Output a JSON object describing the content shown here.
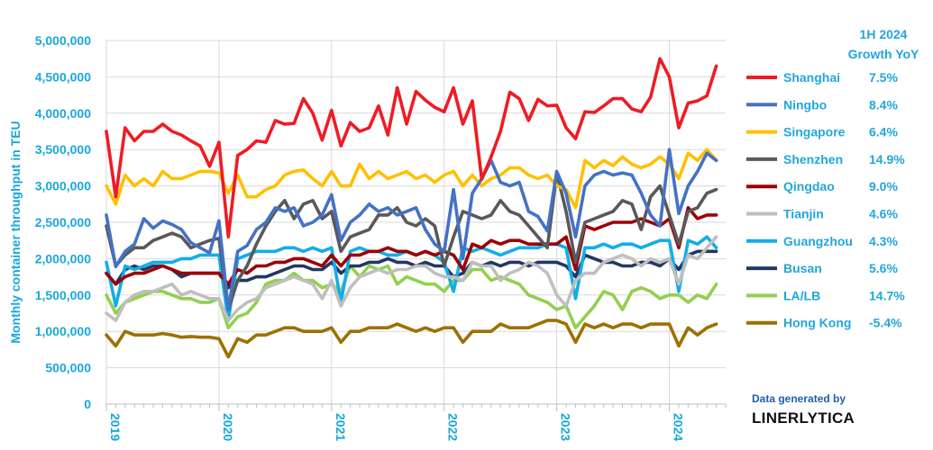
{
  "credit": {
    "line1": "Data generated by",
    "line2": "LINERLYTICA"
  },
  "chart_data": {
    "type": "line",
    "ylabel": "Monthly container throughput in TEU",
    "ylim": [
      0,
      5000000
    ],
    "yticks": [
      0,
      500000,
      1000000,
      1500000,
      2000000,
      2500000,
      3000000,
      3500000,
      4000000,
      4500000,
      5000000
    ],
    "ytick_labels": [
      "0",
      "500,000",
      "1,000,000",
      "1,500,000",
      "2,000,000",
      "2,500,000",
      "3,000,000",
      "3,500,000",
      "4,000,000",
      "4,500,000",
      "5,000,000"
    ],
    "x_tick_labels": [
      "2019",
      "2020",
      "2021",
      "2022",
      "2023",
      "2024"
    ],
    "x_start": "2019-01",
    "grid": true,
    "legend_title_line1": "1H 2024",
    "legend_title_line2": "Growth YoY",
    "legend_position": "right",
    "series": [
      {
        "name": "Shanghai",
        "growth": "7.5%",
        "color": "#ee1c24",
        "values": [
          3750000,
          2850000,
          3800000,
          3620000,
          3750000,
          3750000,
          3850000,
          3750000,
          3700000,
          3620000,
          3550000,
          3270000,
          3600000,
          2300000,
          3420000,
          3500000,
          3620000,
          3600000,
          3900000,
          3850000,
          3860000,
          4200000,
          4000000,
          3630000,
          4040000,
          3550000,
          3870000,
          3750000,
          3800000,
          4100000,
          3700000,
          4350000,
          3850000,
          4300000,
          4180000,
          4080000,
          4020000,
          4350000,
          3850000,
          4170000,
          3090000,
          3400000,
          3750000,
          4290000,
          4200000,
          3900000,
          4190000,
          4100000,
          4110000,
          3800000,
          3650000,
          4020000,
          4010000,
          4100000,
          4200000,
          4200000,
          4060000,
          4020000,
          4220000,
          4750000,
          4500000,
          3800000,
          4140000,
          4170000,
          4240000,
          4650000
        ]
      },
      {
        "name": "Ningbo",
        "growth": "8.4%",
        "color": "#4472c4",
        "values": [
          2600000,
          1890000,
          2100000,
          2200000,
          2550000,
          2420000,
          2520000,
          2470000,
          2400000,
          2220000,
          2150000,
          2080000,
          2520000,
          1300000,
          2100000,
          2180000,
          2400000,
          2500000,
          2700000,
          2650000,
          2700000,
          2450000,
          2500000,
          2600000,
          2880000,
          2250000,
          2500000,
          2600000,
          2750000,
          2650000,
          2700000,
          2600000,
          2650000,
          2700000,
          2400000,
          2200000,
          2100000,
          2950000,
          2000000,
          2900000,
          3100000,
          3350000,
          3050000,
          3000000,
          3050000,
          2650000,
          2580000,
          2380000,
          3200000,
          2900000,
          2300000,
          3000000,
          3150000,
          3200000,
          3150000,
          3180000,
          3150000,
          2900000,
          2600000,
          2450000,
          3500000,
          2620000,
          3000000,
          3200000,
          3450000,
          3350000
        ]
      },
      {
        "name": "Singapore",
        "growth": "6.4%",
        "color": "#ffc000",
        "values": [
          3000000,
          2750000,
          3150000,
          3000000,
          3100000,
          3000000,
          3200000,
          3100000,
          3100000,
          3150000,
          3200000,
          3200000,
          3180000,
          2900000,
          3150000,
          2850000,
          2850000,
          2950000,
          3000000,
          3150000,
          3200000,
          3220000,
          3100000,
          3000000,
          3200000,
          3000000,
          3000000,
          3300000,
          3100000,
          3200000,
          3100000,
          3150000,
          3200000,
          3100000,
          3150000,
          3050000,
          3150000,
          3200000,
          3000000,
          3150000,
          3000000,
          3100000,
          3150000,
          3250000,
          3250000,
          3150000,
          3100000,
          3150000,
          3000000,
          2950000,
          2700000,
          3350000,
          3250000,
          3350000,
          3280000,
          3400000,
          3300000,
          3250000,
          3300000,
          3400000,
          3300000,
          3100000,
          3450000,
          3350000,
          3500000,
          3350000
        ]
      },
      {
        "name": "Shenzhen",
        "growth": "14.9%",
        "color": "#595959",
        "values": [
          2450000,
          1900000,
          2050000,
          2150000,
          2150000,
          2250000,
          2300000,
          2350000,
          2300000,
          2150000,
          2200000,
          2250000,
          2280000,
          1300000,
          1700000,
          1900000,
          2200000,
          2450000,
          2650000,
          2800000,
          2550000,
          2750000,
          2800000,
          2550000,
          2650000,
          2100000,
          2300000,
          2350000,
          2400000,
          2600000,
          2600000,
          2700000,
          2500000,
          2450000,
          2550000,
          2450000,
          1900000,
          2300000,
          2650000,
          2600000,
          2550000,
          2600000,
          2800000,
          2650000,
          2600000,
          2450000,
          2300000,
          2150000,
          3180000,
          2650000,
          1950000,
          2500000,
          2550000,
          2600000,
          2650000,
          2800000,
          2750000,
          2400000,
          2850000,
          3000000,
          2600000,
          2200000,
          2650000,
          2700000,
          2900000,
          2950000
        ]
      },
      {
        "name": "Qingdao",
        "growth": "9.0%",
        "color": "#9c0006",
        "values": [
          1800000,
          1650000,
          1750000,
          1800000,
          1800000,
          1850000,
          1900000,
          1850000,
          1800000,
          1800000,
          1800000,
          1800000,
          1800000,
          1650000,
          1850000,
          1800000,
          1900000,
          1900000,
          1950000,
          1950000,
          2000000,
          2000000,
          1950000,
          1900000,
          2050000,
          1900000,
          2050000,
          2050000,
          2100000,
          2100000,
          2150000,
          2100000,
          2100000,
          2050000,
          2100000,
          2050000,
          2100000,
          2050000,
          1850000,
          2200000,
          2150000,
          2250000,
          2200000,
          2250000,
          2250000,
          2200000,
          2200000,
          2200000,
          2200000,
          2300000,
          1850000,
          2450000,
          2400000,
          2450000,
          2500000,
          2500000,
          2500000,
          2550000,
          2500000,
          2450000,
          2550000,
          2150000,
          2700000,
          2550000,
          2600000,
          2600000
        ]
      },
      {
        "name": "Tianjin",
        "growth": "4.6%",
        "color": "#bfbfbf",
        "values": [
          1250000,
          1150000,
          1400000,
          1500000,
          1550000,
          1550000,
          1600000,
          1650000,
          1500000,
          1550000,
          1500000,
          1450000,
          1450000,
          1150000,
          1300000,
          1400000,
          1450000,
          1600000,
          1650000,
          1700000,
          1750000,
          1700000,
          1650000,
          1450000,
          1700000,
          1350000,
          1600000,
          1750000,
          1800000,
          1850000,
          1800000,
          1850000,
          1850000,
          1900000,
          1900000,
          1800000,
          1750000,
          1750000,
          1700000,
          1950000,
          1900000,
          1900000,
          1700000,
          1800000,
          1850000,
          1950000,
          1900000,
          1800000,
          1500000,
          1350000,
          1700000,
          1800000,
          1800000,
          1950000,
          2000000,
          2050000,
          2000000,
          1900000,
          2000000,
          1950000,
          2000000,
          1650000,
          2050000,
          2000000,
          2150000,
          2300000
        ]
      },
      {
        "name": "Guangzhou",
        "growth": "4.3%",
        "color": "#12aee8",
        "values": [
          1950000,
          1350000,
          1900000,
          1850000,
          1900000,
          1950000,
          1950000,
          1950000,
          2000000,
          2000000,
          2050000,
          2050000,
          2050000,
          1150000,
          2000000,
          2050000,
          2100000,
          2100000,
          2100000,
          2150000,
          2150000,
          2100000,
          2150000,
          2100000,
          2150000,
          1400000,
          2100000,
          2150000,
          2100000,
          2100000,
          2050000,
          2050000,
          2100000,
          2050000,
          2100000,
          2050000,
          1950000,
          1550000,
          2150000,
          2100000,
          2150000,
          2100000,
          2050000,
          2100000,
          2150000,
          2150000,
          2150000,
          2200000,
          2200000,
          2150000,
          1450000,
          2150000,
          2150000,
          2200000,
          2150000,
          2200000,
          2200000,
          2150000,
          2200000,
          2250000,
          2250000,
          1550000,
          2250000,
          2200000,
          2300000,
          2150000
        ]
      },
      {
        "name": "Busan",
        "growth": "5.6%",
        "color": "#203864",
        "values": [
          1800000,
          1650000,
          1850000,
          1900000,
          1850000,
          1900000,
          1900000,
          1850000,
          1750000,
          1800000,
          1800000,
          1800000,
          1800000,
          1600000,
          1700000,
          1700000,
          1750000,
          1750000,
          1800000,
          1850000,
          1900000,
          1900000,
          1850000,
          1850000,
          1950000,
          1800000,
          1900000,
          1900000,
          1950000,
          1950000,
          2000000,
          1950000,
          1950000,
          1900000,
          1950000,
          1900000,
          1900000,
          1750000,
          1800000,
          1950000,
          1900000,
          1950000,
          1900000,
          1950000,
          1950000,
          1900000,
          1950000,
          1950000,
          1950000,
          1900000,
          1750000,
          2050000,
          2000000,
          1950000,
          1950000,
          1900000,
          1900000,
          1950000,
          1950000,
          1900000,
          2000000,
          1850000,
          2050000,
          2100000,
          2100000,
          2100000
        ]
      },
      {
        "name": "LA/LB",
        "growth": "14.7%",
        "color": "#92d050",
        "values": [
          1500000,
          1250000,
          1400000,
          1450000,
          1500000,
          1550000,
          1550000,
          1500000,
          1450000,
          1450000,
          1400000,
          1400000,
          1450000,
          1050000,
          1200000,
          1250000,
          1400000,
          1650000,
          1700000,
          1700000,
          1800000,
          1700000,
          1700000,
          1600000,
          1650000,
          1550000,
          1900000,
          1750000,
          1900000,
          1850000,
          1900000,
          1650000,
          1750000,
          1700000,
          1650000,
          1650000,
          1550000,
          1700000,
          1700000,
          1850000,
          1850000,
          1700000,
          1750000,
          1700000,
          1650000,
          1500000,
          1450000,
          1400000,
          1300000,
          1350000,
          1050000,
          1200000,
          1350000,
          1550000,
          1500000,
          1300000,
          1550000,
          1600000,
          1550000,
          1450000,
          1500000,
          1500000,
          1400000,
          1500000,
          1450000,
          1650000
        ]
      },
      {
        "name": "Hong Kong",
        "growth": "-5.4%",
        "color": "#9c7100",
        "values": [
          950000,
          800000,
          1000000,
          950000,
          950000,
          950000,
          970000,
          950000,
          920000,
          930000,
          920000,
          920000,
          900000,
          650000,
          900000,
          850000,
          950000,
          950000,
          1000000,
          1050000,
          1050000,
          1000000,
          1000000,
          1000000,
          1050000,
          850000,
          1000000,
          1000000,
          1050000,
          1050000,
          1050000,
          1100000,
          1050000,
          1000000,
          1050000,
          1000000,
          1050000,
          1050000,
          850000,
          1000000,
          1000000,
          1000000,
          1100000,
          1050000,
          1050000,
          1050000,
          1100000,
          1150000,
          1150000,
          1100000,
          850000,
          1100000,
          1050000,
          1100000,
          1050000,
          1100000,
          1100000,
          1050000,
          1100000,
          1100000,
          1100000,
          800000,
          1050000,
          950000,
          1050000,
          1100000
        ]
      }
    ]
  }
}
